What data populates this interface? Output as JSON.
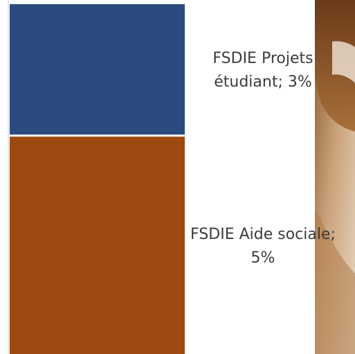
{
  "chart_data": {
    "type": "bar",
    "stacked": true,
    "title": "",
    "xlabel": "",
    "ylabel": "",
    "legend": "none",
    "grid": false,
    "series": [
      {
        "name": "FSDIE Aide sociale",
        "value": 5,
        "value_label": "5%",
        "label_lines": [
          "FSDIE Aide sociale;",
          "5%"
        ],
        "color": "#9c4a10"
      },
      {
        "name": "FSDIE Projets étudiant",
        "value": 3,
        "value_label": "3%",
        "label_lines": [
          "FSDIE Projets",
          "étudiant; 3%"
        ],
        "color": "#2b4a7f"
      }
    ],
    "background_photo": "person-photo"
  }
}
